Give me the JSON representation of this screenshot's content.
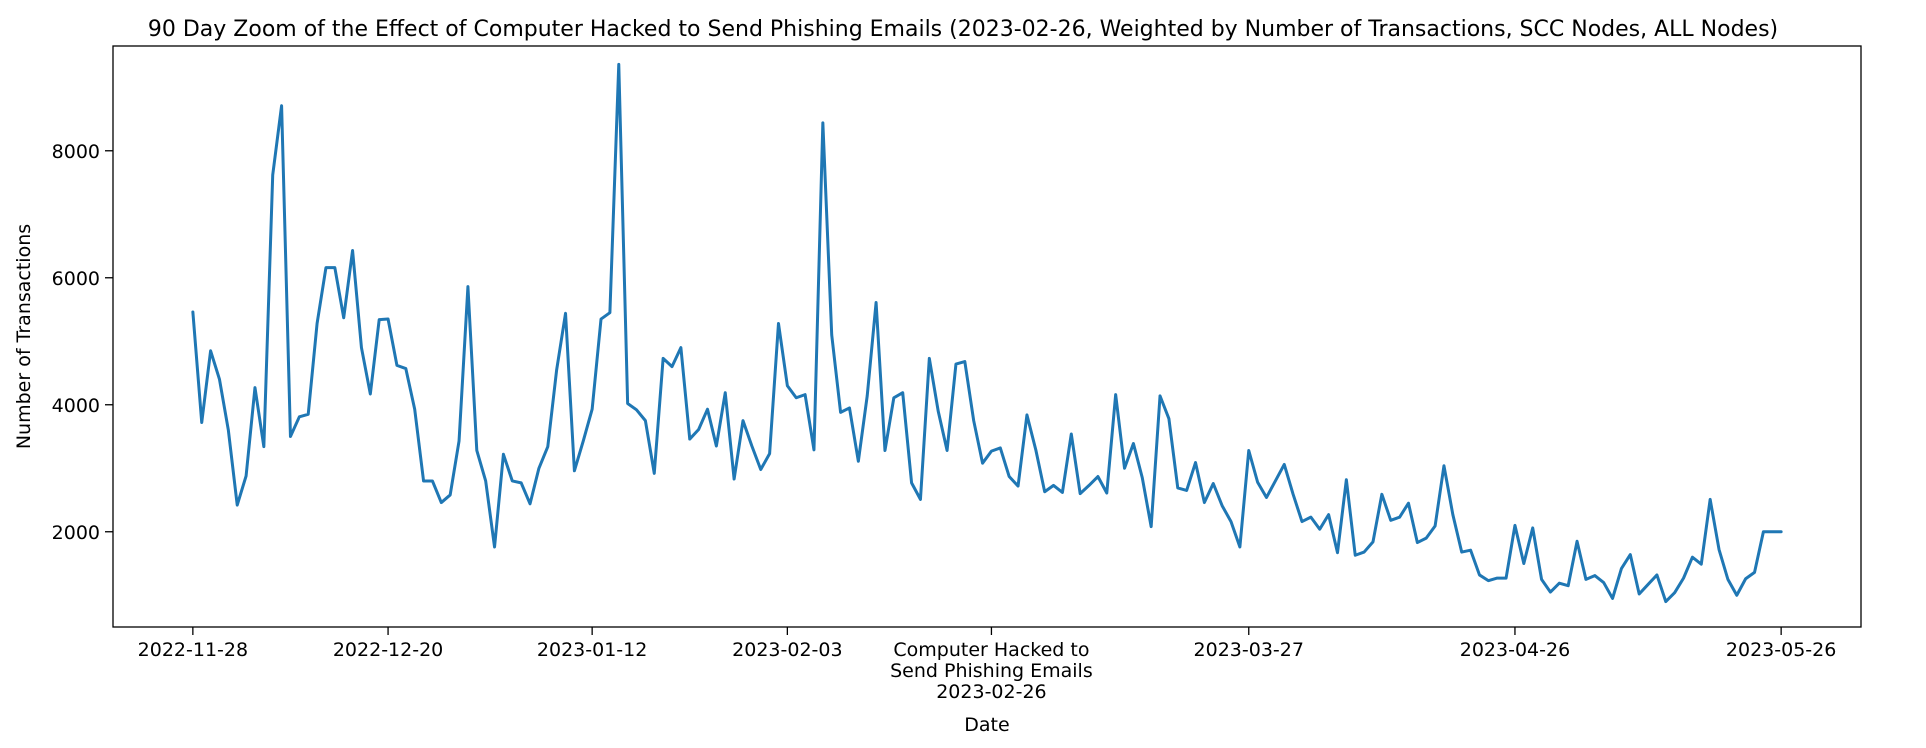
{
  "chart_data": {
    "type": "line",
    "title": "90 Day Zoom of the Effect of Computer Hacked to Send Phishing Emails (2023-02-26, Weighted by Number of Transactions, SCC Nodes, ALL Nodes)",
    "xlabel": "Date",
    "ylabel": "Number of Transactions",
    "xlim": [
      "2022-11-19",
      "2023-06-04"
    ],
    "ylim": [
      500,
      9650
    ],
    "grid": false,
    "line_color": "#1f77b4",
    "x_ticks": [
      "2022-11-28",
      "2022-12-20",
      "2023-01-12",
      "2023-02-03",
      "2023-02-26",
      "2023-03-27",
      "2023-04-26",
      "2023-05-26"
    ],
    "x_tick_labels": [
      "2022-11-28",
      "2022-12-20",
      "2023-01-12",
      "2023-02-03",
      "Computer Hacked to\nSend Phishing Emails\n2023-02-26",
      "2023-03-27",
      "2023-04-26",
      "2023-05-26"
    ],
    "y_ticks": [
      2000,
      4000,
      6000,
      8000
    ],
    "series": [
      {
        "x_start": "2022-11-28",
        "x_step_days": 1,
        "values": [
          5460,
          3720,
          4850,
          4400,
          3600,
          2420,
          2880,
          4270,
          3340,
          7620,
          8710,
          3500,
          3810,
          3850,
          5280,
          6160,
          6160,
          5370,
          6430,
          4900,
          4170,
          5340,
          5350,
          4620,
          4570,
          3930,
          2800,
          2800,
          2460,
          2580,
          3430,
          5860,
          3280,
          2800,
          1760,
          3220,
          2800,
          2770,
          2440,
          3000,
          3340,
          4550,
          5440,
          2960,
          3430,
          3930,
          5350,
          5450,
          9360,
          4020,
          3920,
          3750,
          2920,
          4730,
          4600,
          4900,
          3460,
          3610,
          3930,
          3350,
          4190,
          2830,
          3750,
          3350,
          2980,
          3230,
          5280,
          4300,
          4110,
          4160,
          3290,
          8440,
          5100,
          3880,
          3950,
          3110,
          4140,
          5610,
          3280,
          4110,
          4190,
          2770,
          2510,
          4730,
          3900,
          3280,
          4640,
          4680,
          3750,
          3080,
          3270,
          3320,
          2870,
          2720,
          3840,
          3290,
          2630,
          2730,
          2620,
          3540,
          2600,
          2730,
          2870,
          2610,
          4160,
          3000,
          3390,
          2850,
          2080,
          4140,
          3780,
          2690,
          2650,
          3090,
          2460,
          2760,
          2410,
          2160,
          1760,
          3280,
          2780,
          2540,
          2800,
          3060,
          2590,
          2160,
          2230,
          2040,
          2270,
          1670,
          2820,
          1630,
          1680,
          1840,
          2590,
          2180,
          2230,
          2450,
          1830,
          1900,
          2090,
          3040,
          2270,
          1680,
          1710,
          1320,
          1230,
          1270,
          1270,
          2100,
          1500,
          2060,
          1250,
          1050,
          1190,
          1150,
          1850,
          1250,
          1310,
          1200,
          950,
          1420,
          1640,
          1020,
          1170,
          1320,
          900,
          1040,
          1270,
          1600,
          1490,
          2510,
          1720,
          1250,
          1000,
          1260,
          1360,
          2000,
          2000,
          2000
        ]
      }
    ]
  }
}
